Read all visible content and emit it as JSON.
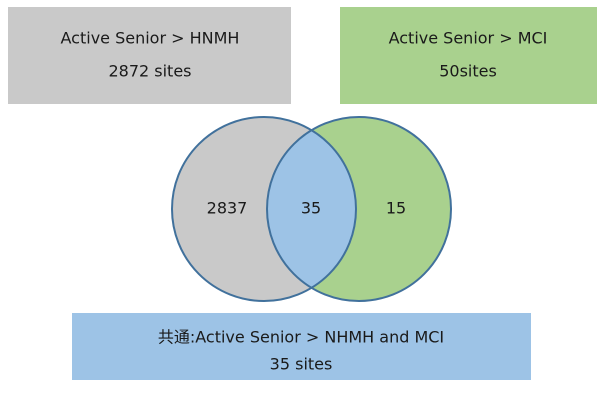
{
  "boxes": [
    {
      "lines": [
        "Active Senior > HNMH",
        "2872 sites"
      ]
    },
    {
      "lines": [
        "Active Senior > MCI",
        "50sites"
      ]
    },
    {
      "lines": [
        "共通:Active Senior > NHMH and MCI",
        "35 sites"
      ]
    }
  ],
  "regions": {
    "left": "2837",
    "overlap": "35",
    "right": "15"
  }
}
